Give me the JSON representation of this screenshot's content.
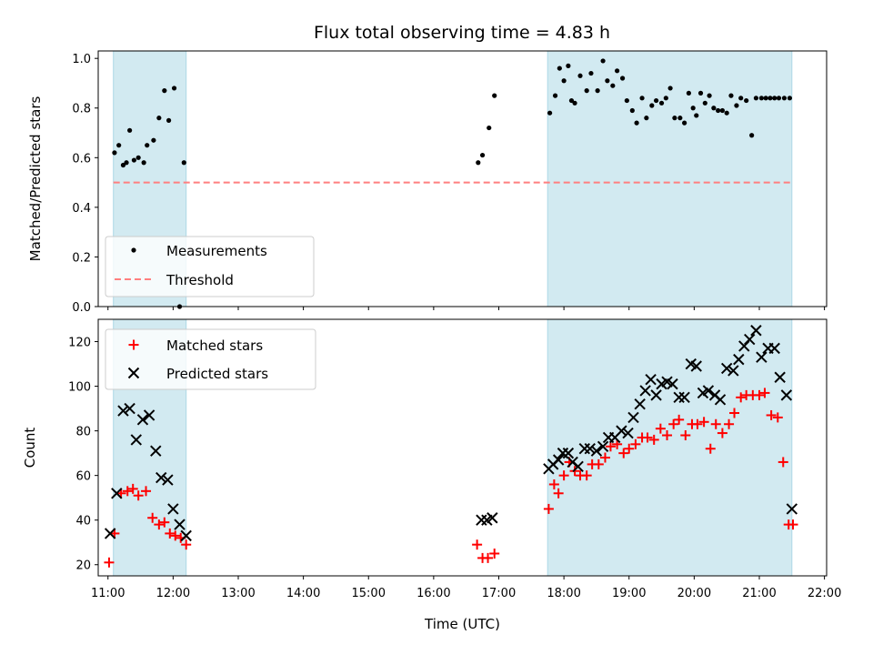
{
  "title": "Flux total observing time = 4.83 h",
  "colors": {
    "shade": "#add8e6",
    "measurement": "#000000",
    "threshold": "#ff7f7f",
    "matched": "#ff0000",
    "predicted": "#000000"
  },
  "chart_data": [
    {
      "type": "scatter",
      "ylabel": "Matched/Predicted stars",
      "xlabel": "",
      "ylim": [
        0.0,
        1.03
      ],
      "yticks": [
        "0.0",
        "0.2",
        "0.4",
        "0.6",
        "0.8",
        "1.0"
      ],
      "legend": {
        "placement": "lower-left",
        "entries": [
          "Measurements",
          "Threshold"
        ]
      },
      "threshold": 0.5,
      "shaded_intervals": [
        [
          "11:05",
          "12:12"
        ],
        [
          "17:45",
          "21:30"
        ]
      ],
      "series": [
        {
          "name": "Measurements",
          "x": [
            "11:06",
            "11:10",
            "11:14",
            "11:17",
            "11:20",
            "11:24",
            "11:28",
            "11:33",
            "11:36",
            "11:42",
            "11:47",
            "11:52",
            "11:56",
            "12:01",
            "12:06",
            "12:10",
            "16:41",
            "16:45",
            "16:51",
            "16:56",
            "17:47",
            "17:52",
            "17:56",
            "18:00",
            "18:04",
            "18:07",
            "18:10",
            "18:15",
            "18:21",
            "18:25",
            "18:31",
            "18:36",
            "18:40",
            "18:45",
            "18:49",
            "18:54",
            "18:58",
            "19:03",
            "19:07",
            "19:12",
            "19:16",
            "19:21",
            "19:25",
            "19:30",
            "19:34",
            "19:38",
            "19:42",
            "19:47",
            "19:51",
            "19:55",
            "19:59",
            "20:02",
            "20:06",
            "20:10",
            "20:14",
            "20:18",
            "20:22",
            "20:26",
            "20:30",
            "20:34",
            "20:39",
            "20:43",
            "20:48",
            "20:53",
            "20:57",
            "21:02",
            "21:06",
            "21:10",
            "21:14",
            "21:18",
            "21:23",
            "21:28"
          ],
          "y": [
            0.62,
            0.65,
            0.57,
            0.58,
            0.71,
            0.59,
            0.6,
            0.58,
            0.65,
            0.67,
            0.76,
            0.87,
            0.75,
            0.88,
            0.0,
            0.58,
            0.58,
            0.61,
            0.72,
            0.85,
            0.78,
            0.85,
            0.96,
            0.91,
            0.97,
            0.83,
            0.82,
            0.93,
            0.87,
            0.94,
            0.87,
            0.99,
            0.91,
            0.89,
            0.95,
            0.92,
            0.83,
            0.79,
            0.74,
            0.84,
            0.76,
            0.81,
            0.83,
            0.82,
            0.84,
            0.88,
            0.76,
            0.76,
            0.74,
            0.86,
            0.8,
            0.77,
            0.86,
            0.82,
            0.85,
            0.8,
            0.79,
            0.79,
            0.78,
            0.85,
            0.81,
            0.84,
            0.83,
            0.69,
            0.84,
            0.84,
            0.84,
            0.84,
            0.84,
            0.84,
            0.84,
            0.84
          ]
        }
      ]
    },
    {
      "type": "scatter",
      "ylabel": "Count",
      "xlabel": "Time (UTC)",
      "ylim": [
        15,
        130
      ],
      "yticks": [
        "20",
        "40",
        "60",
        "80",
        "100",
        "120"
      ],
      "xticks": [
        "11:00",
        "12:00",
        "13:00",
        "14:00",
        "15:00",
        "16:00",
        "17:00",
        "18:00",
        "19:00",
        "20:00",
        "21:00",
        "22:00"
      ],
      "legend": {
        "placement": "upper-left",
        "entries": [
          "Matched stars",
          "Predicted stars"
        ]
      },
      "shaded_intervals": [
        [
          "11:05",
          "12:12"
        ],
        [
          "17:45",
          "21:30"
        ]
      ],
      "series": [
        {
          "name": "Matched stars",
          "x": [
            "11:01",
            "11:06",
            "11:12",
            "11:18",
            "11:23",
            "11:28",
            "11:35",
            "11:41",
            "11:47",
            "11:52",
            "11:57",
            "12:02",
            "12:07",
            "12:12",
            "16:40",
            "16:45",
            "16:50",
            "16:56",
            "17:46",
            "17:51",
            "17:55",
            "18:00",
            "18:05",
            "18:10",
            "18:15",
            "18:21",
            "18:26",
            "18:32",
            "18:38",
            "18:43",
            "18:49",
            "18:55",
            "19:00",
            "19:06",
            "19:12",
            "19:17",
            "19:23",
            "19:29",
            "19:35",
            "19:41",
            "19:46",
            "19:52",
            "19:58",
            "20:03",
            "20:09",
            "20:15",
            "20:20",
            "20:26",
            "20:32",
            "20:37",
            "20:43",
            "20:48",
            "20:54",
            "21:00",
            "21:05",
            "21:11",
            "21:17",
            "21:22",
            "21:27",
            "21:31"
          ],
          "y": [
            21,
            34,
            52,
            53,
            54,
            51,
            53,
            41,
            38,
            39,
            34,
            33,
            32,
            29,
            29,
            23,
            23,
            25,
            45,
            56,
            52,
            60,
            66,
            62,
            60,
            60,
            65,
            65,
            68,
            73,
            74,
            70,
            72,
            74,
            77,
            77,
            76,
            81,
            78,
            83,
            85,
            78,
            83,
            83,
            84,
            72,
            83,
            79,
            83,
            88,
            95,
            96,
            96,
            96,
            97,
            87,
            86,
            66,
            38,
            38
          ]
        },
        {
          "name": "Predicted stars",
          "x": [
            "11:02",
            "11:08",
            "11:14",
            "11:20",
            "11:26",
            "11:32",
            "11:38",
            "11:44",
            "11:49",
            "11:55",
            "12:00",
            "12:06",
            "12:12",
            "16:44",
            "16:49",
            "16:54",
            "17:46",
            "17:50",
            "17:55",
            "17:59",
            "18:04",
            "18:08",
            "18:13",
            "18:19",
            "18:24",
            "18:30",
            "18:36",
            "18:41",
            "18:47",
            "18:53",
            "18:59",
            "19:04",
            "19:10",
            "19:15",
            "19:20",
            "19:25",
            "19:30",
            "19:35",
            "19:40",
            "19:46",
            "19:51",
            "19:57",
            "20:02",
            "20:08",
            "20:13",
            "20:19",
            "20:24",
            "20:30",
            "20:36",
            "20:41",
            "20:46",
            "20:51",
            "20:57",
            "21:02",
            "21:08",
            "21:14",
            "21:19",
            "21:25",
            "21:30"
          ],
          "y": [
            34,
            52,
            89,
            90,
            76,
            85,
            87,
            71,
            59,
            58,
            45,
            38,
            33,
            40,
            40,
            41,
            63,
            65,
            67,
            70,
            70,
            66,
            64,
            72,
            72,
            71,
            73,
            77,
            77,
            80,
            79,
            86,
            92,
            98,
            103,
            96,
            101,
            102,
            101,
            95,
            95,
            110,
            109,
            97,
            98,
            96,
            94,
            108,
            107,
            112,
            118,
            121,
            125,
            113,
            117,
            117,
            104,
            96,
            45
          ]
        }
      ]
    }
  ]
}
